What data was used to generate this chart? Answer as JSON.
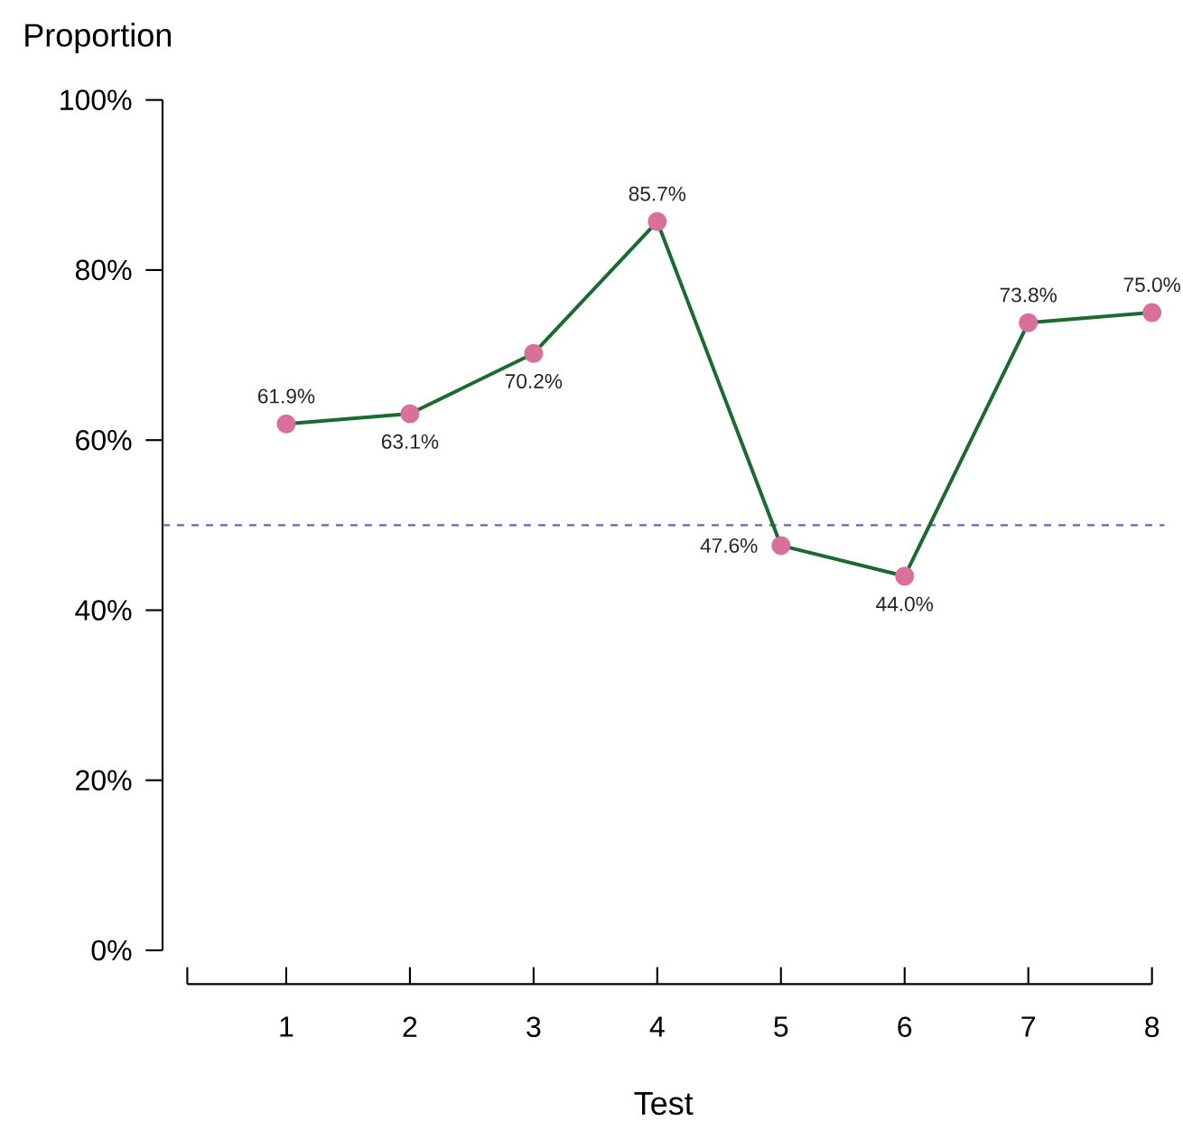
{
  "chart_data": {
    "type": "line",
    "xlabel": "Test",
    "ylabel": "Proportion",
    "x": [
      1,
      2,
      3,
      4,
      5,
      6,
      7,
      8
    ],
    "series": [
      {
        "color": "#1a6b30",
        "values": [
          61.9,
          63.1,
          70.2,
          85.7,
          47.6,
          44.0,
          73.8,
          75.0
        ],
        "value_labels": [
          "61.9%",
          "63.1%",
          "70.2%",
          "85.7%",
          "47.6%",
          "44.0%",
          "73.8%",
          "75.0%"
        ]
      }
    ],
    "marker": "circle",
    "line_style": "solid",
    "xlim": [
      0,
      8.1
    ],
    "xticks": [
      {
        "value": 0.2,
        "label": null
      },
      1,
      2,
      3,
      4,
      5,
      6,
      7,
      8
    ],
    "ylim": [
      0,
      100
    ],
    "yticks": [
      {
        "value": 0,
        "label": "0%"
      },
      {
        "value": 20,
        "label": "20%"
      },
      {
        "value": 40,
        "label": "40%"
      },
      {
        "value": 60,
        "label": "60%"
      },
      {
        "value": 80,
        "label": "80%"
      },
      {
        "value": 100,
        "label": "100%"
      }
    ],
    "ref_lines": [
      {
        "axis": "y",
        "value": 50,
        "color": "#6666b3",
        "line_style": "dashed"
      }
    ]
  }
}
